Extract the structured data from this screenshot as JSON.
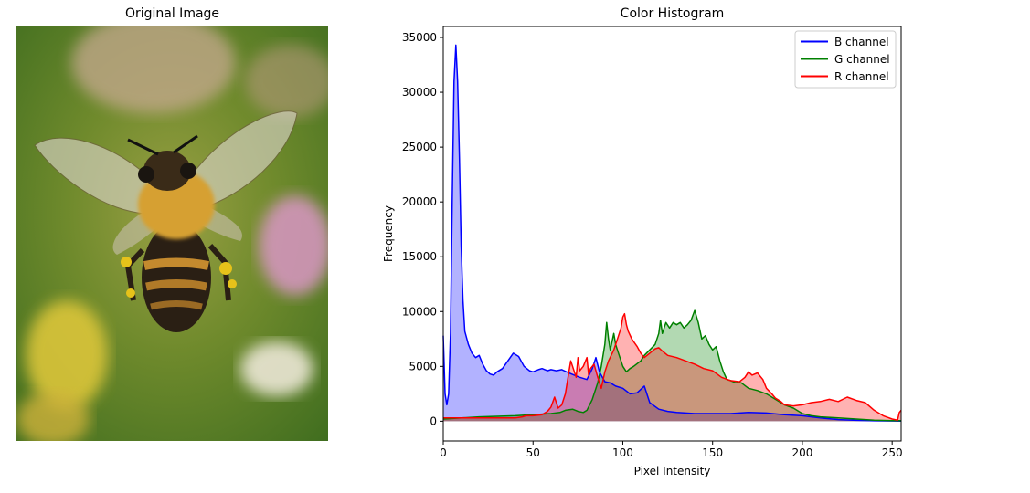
{
  "image_panel": {
    "title": "Original Image",
    "subject": "bee-photo"
  },
  "chart_data": {
    "type": "area",
    "title": "Color Histogram",
    "xlabel": "Pixel Intensity",
    "ylabel": "Frequency",
    "xlim": [
      0,
      255
    ],
    "ylim": [
      -1800,
      36000
    ],
    "xticks": [
      0,
      50,
      100,
      150,
      200,
      250
    ],
    "yticks": [
      0,
      5000,
      10000,
      15000,
      20000,
      25000,
      30000,
      35000
    ],
    "legend_position": "top-right",
    "series": [
      {
        "name": "B channel",
        "color": "#0000ff",
        "points": [
          [
            0,
            7800
          ],
          [
            1,
            2500
          ],
          [
            2,
            1500
          ],
          [
            3,
            2500
          ],
          [
            4,
            8000
          ],
          [
            5,
            20000
          ],
          [
            6,
            31000
          ],
          [
            7,
            34300
          ],
          [
            8,
            31000
          ],
          [
            9,
            24000
          ],
          [
            10,
            16000
          ],
          [
            11,
            11000
          ],
          [
            12,
            8200
          ],
          [
            14,
            7000
          ],
          [
            16,
            6200
          ],
          [
            18,
            5800
          ],
          [
            20,
            6000
          ],
          [
            22,
            5200
          ],
          [
            24,
            4600
          ],
          [
            26,
            4300
          ],
          [
            28,
            4200
          ],
          [
            30,
            4500
          ],
          [
            33,
            4800
          ],
          [
            36,
            5500
          ],
          [
            39,
            6200
          ],
          [
            42,
            5900
          ],
          [
            45,
            5000
          ],
          [
            48,
            4600
          ],
          [
            50,
            4500
          ],
          [
            53,
            4700
          ],
          [
            55,
            4800
          ],
          [
            58,
            4600
          ],
          [
            60,
            4700
          ],
          [
            63,
            4600
          ],
          [
            66,
            4700
          ],
          [
            70,
            4400
          ],
          [
            73,
            4200
          ],
          [
            76,
            4000
          ],
          [
            80,
            3800
          ],
          [
            83,
            4800
          ],
          [
            85,
            5800
          ],
          [
            87,
            4500
          ],
          [
            90,
            3600
          ],
          [
            93,
            3500
          ],
          [
            96,
            3200
          ],
          [
            100,
            3000
          ],
          [
            104,
            2500
          ],
          [
            108,
            2600
          ],
          [
            112,
            3200
          ],
          [
            115,
            1700
          ],
          [
            120,
            1100
          ],
          [
            125,
            900
          ],
          [
            130,
            800
          ],
          [
            140,
            700
          ],
          [
            150,
            700
          ],
          [
            160,
            700
          ],
          [
            170,
            800
          ],
          [
            180,
            750
          ],
          [
            190,
            600
          ],
          [
            200,
            500
          ],
          [
            210,
            300
          ],
          [
            220,
            150
          ],
          [
            230,
            80
          ],
          [
            240,
            40
          ],
          [
            250,
            20
          ],
          [
            255,
            10
          ]
        ]
      },
      {
        "name": "G channel",
        "color": "#008000",
        "points": [
          [
            0,
            200
          ],
          [
            20,
            400
          ],
          [
            40,
            500
          ],
          [
            60,
            700
          ],
          [
            65,
            800
          ],
          [
            68,
            1000
          ],
          [
            72,
            1100
          ],
          [
            75,
            900
          ],
          [
            78,
            800
          ],
          [
            80,
            1000
          ],
          [
            83,
            2000
          ],
          [
            86,
            3500
          ],
          [
            88,
            5000
          ],
          [
            90,
            7000
          ],
          [
            91,
            9000
          ],
          [
            92,
            7500
          ],
          [
            93,
            6500
          ],
          [
            95,
            8000
          ],
          [
            96,
            7000
          ],
          [
            98,
            6000
          ],
          [
            100,
            5000
          ],
          [
            102,
            4500
          ],
          [
            104,
            4800
          ],
          [
            106,
            5000
          ],
          [
            110,
            5500
          ],
          [
            112,
            6000
          ],
          [
            115,
            6500
          ],
          [
            118,
            7000
          ],
          [
            120,
            8000
          ],
          [
            121,
            9200
          ],
          [
            122,
            8000
          ],
          [
            124,
            9000
          ],
          [
            126,
            8500
          ],
          [
            128,
            9000
          ],
          [
            130,
            8800
          ],
          [
            132,
            9000
          ],
          [
            134,
            8500
          ],
          [
            136,
            8800
          ],
          [
            138,
            9200
          ],
          [
            140,
            10100
          ],
          [
            142,
            9000
          ],
          [
            144,
            7500
          ],
          [
            146,
            7800
          ],
          [
            148,
            7000
          ],
          [
            150,
            6500
          ],
          [
            152,
            6800
          ],
          [
            154,
            5500
          ],
          [
            156,
            4500
          ],
          [
            158,
            3800
          ],
          [
            160,
            3700
          ],
          [
            163,
            3500
          ],
          [
            166,
            3500
          ],
          [
            170,
            3000
          ],
          [
            175,
            2800
          ],
          [
            180,
            2500
          ],
          [
            185,
            2000
          ],
          [
            190,
            1500
          ],
          [
            195,
            1200
          ],
          [
            200,
            700
          ],
          [
            205,
            500
          ],
          [
            210,
            400
          ],
          [
            220,
            300
          ],
          [
            230,
            200
          ],
          [
            240,
            100
          ],
          [
            250,
            50
          ],
          [
            255,
            50
          ]
        ]
      },
      {
        "name": "R channel",
        "color": "#ff0000",
        "points": [
          [
            0,
            300
          ],
          [
            20,
            300
          ],
          [
            40,
            300
          ],
          [
            44,
            400
          ],
          [
            46,
            500
          ],
          [
            50,
            500
          ],
          [
            55,
            600
          ],
          [
            58,
            900
          ],
          [
            60,
            1300
          ],
          [
            62,
            2200
          ],
          [
            64,
            1200
          ],
          [
            66,
            1500
          ],
          [
            68,
            2500
          ],
          [
            70,
            4500
          ],
          [
            71,
            5500
          ],
          [
            72,
            5000
          ],
          [
            74,
            4000
          ],
          [
            75,
            5800
          ],
          [
            76,
            4600
          ],
          [
            78,
            5000
          ],
          [
            80,
            5800
          ],
          [
            81,
            4200
          ],
          [
            82,
            4800
          ],
          [
            84,
            5200
          ],
          [
            86,
            4000
          ],
          [
            88,
            3000
          ],
          [
            90,
            4500
          ],
          [
            92,
            5500
          ],
          [
            95,
            6500
          ],
          [
            97,
            7500
          ],
          [
            99,
            8500
          ],
          [
            100,
            9500
          ],
          [
            101,
            9800
          ],
          [
            102,
            8800
          ],
          [
            103,
            8200
          ],
          [
            105,
            7500
          ],
          [
            108,
            6800
          ],
          [
            110,
            6200
          ],
          [
            112,
            5800
          ],
          [
            115,
            6200
          ],
          [
            118,
            6600
          ],
          [
            120,
            6700
          ],
          [
            122,
            6400
          ],
          [
            125,
            6000
          ],
          [
            130,
            5800
          ],
          [
            135,
            5500
          ],
          [
            140,
            5200
          ],
          [
            145,
            4800
          ],
          [
            150,
            4600
          ],
          [
            155,
            4000
          ],
          [
            160,
            3700
          ],
          [
            165,
            3600
          ],
          [
            168,
            4000
          ],
          [
            170,
            4500
          ],
          [
            172,
            4200
          ],
          [
            175,
            4400
          ],
          [
            178,
            3800
          ],
          [
            180,
            3000
          ],
          [
            183,
            2500
          ],
          [
            185,
            2100
          ],
          [
            188,
            1800
          ],
          [
            190,
            1500
          ],
          [
            195,
            1400
          ],
          [
            200,
            1500
          ],
          [
            205,
            1700
          ],
          [
            210,
            1800
          ],
          [
            215,
            2000
          ],
          [
            220,
            1800
          ],
          [
            225,
            2200
          ],
          [
            230,
            1900
          ],
          [
            235,
            1700
          ],
          [
            240,
            1000
          ],
          [
            245,
            500
          ],
          [
            250,
            200
          ],
          [
            253,
            100
          ],
          [
            254,
            800
          ],
          [
            255,
            1000
          ]
        ]
      }
    ]
  }
}
